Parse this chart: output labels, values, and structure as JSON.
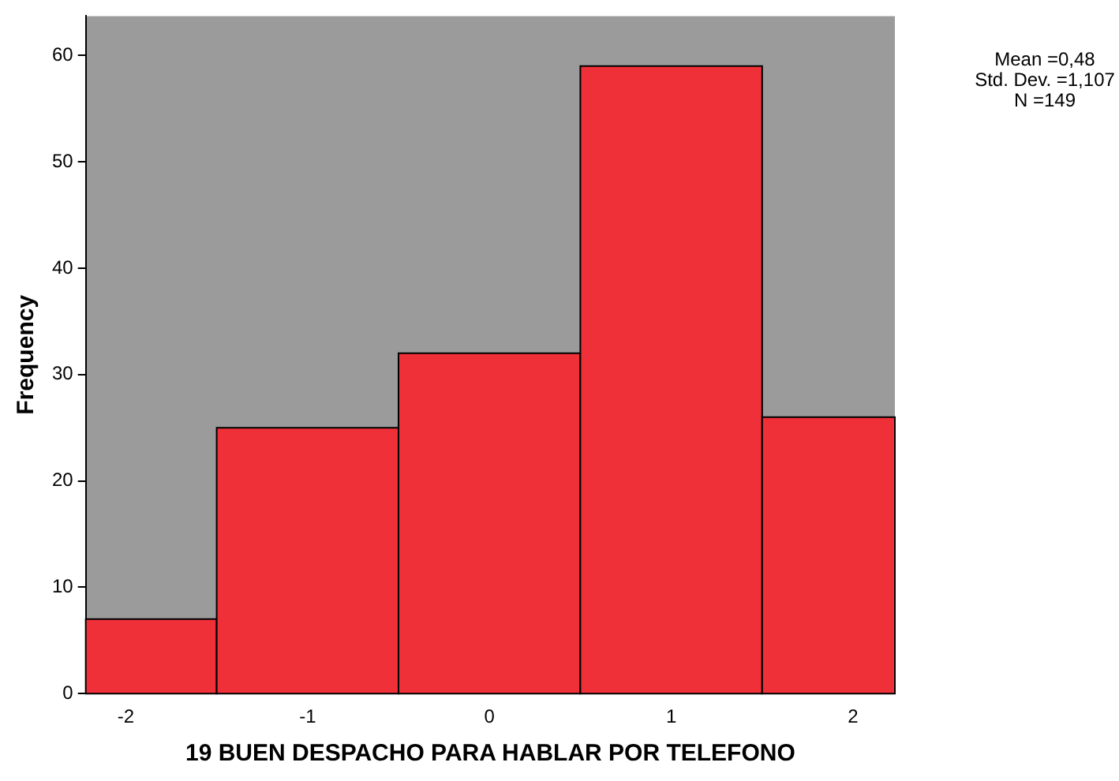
{
  "chart_data": {
    "type": "histogram",
    "xlabel": "19 BUEN DESPACHO PARA HABLAR POR TELEFONO",
    "ylabel": "Frequency",
    "bins": [
      -2.22,
      -1.5,
      -0.5,
      0.5,
      1.5,
      2.23
    ],
    "values": [
      7,
      25,
      32,
      59,
      26
    ],
    "color": "#f03039",
    "xlim": [
      -2.22,
      2.23
    ],
    "xticks": [
      -2,
      -1,
      0,
      1,
      2
    ],
    "ylim": [
      0,
      63.7
    ],
    "yticks": [
      0,
      10,
      20,
      30,
      40,
      50,
      60
    ],
    "grid": false,
    "legend": false,
    "annotations": [
      "Mean =0,48",
      "Std. Dev. =1,107",
      "N =149"
    ]
  }
}
